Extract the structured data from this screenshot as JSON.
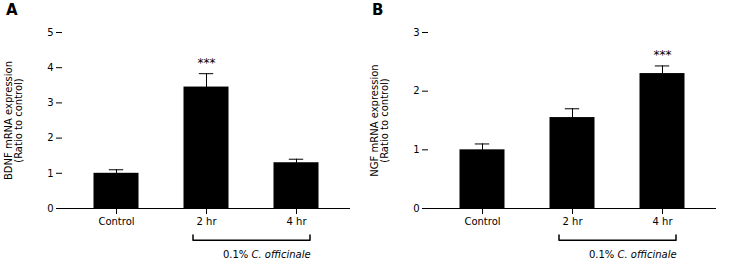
{
  "chart_data": [
    {
      "type": "bar",
      "title": "A",
      "categories": [
        "Control",
        "2 hr",
        "4 hr"
      ],
      "values": [
        1.0,
        3.45,
        1.3
      ],
      "errors": [
        0.1,
        0.38,
        0.1
      ],
      "ylabel": "BDNF mRNA expression\n(Ratio to control)",
      "ylim": [
        0,
        5
      ],
      "yticks": [
        0,
        1,
        2,
        3,
        4,
        5
      ],
      "annotations": [
        {
          "text": "***",
          "category": "2 hr"
        },
        {
          "text": "0.1% ",
          "italic_text": "C. officinale",
          "categories": [
            "2 hr",
            "4 hr"
          ]
        }
      ]
    },
    {
      "type": "bar",
      "title": "B",
      "categories": [
        "Control",
        "2 hr",
        "4 hr"
      ],
      "values": [
        1.0,
        1.55,
        2.3
      ],
      "errors": [
        0.1,
        0.15,
        0.13
      ],
      "ylabel": "NGF mRNA expression\n(Ratio to control)",
      "ylim": [
        0,
        3
      ],
      "yticks": [
        0,
        1,
        2,
        3
      ],
      "annotations": [
        {
          "text": "***",
          "category": "4 hr"
        },
        {
          "text": "0.1% ",
          "italic_text": "C. officinale",
          "categories": [
            "2 hr",
            "4 hr"
          ]
        }
      ]
    }
  ]
}
